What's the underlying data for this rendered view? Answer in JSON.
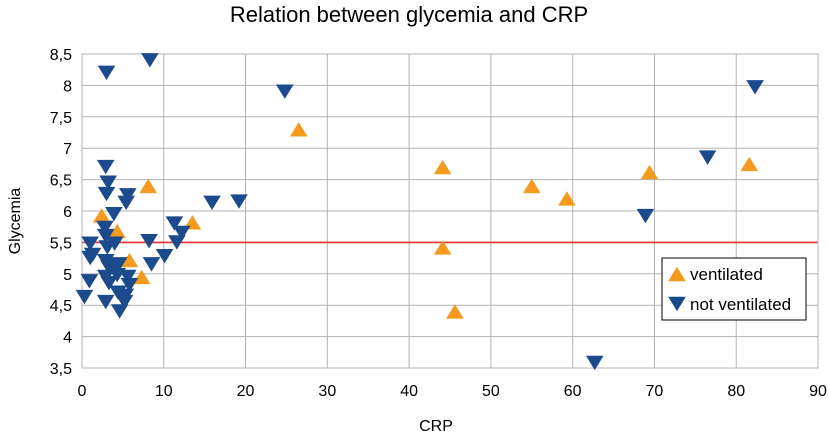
{
  "chart_data": {
    "type": "scatter",
    "title": "Relation between glycemia and CRP",
    "xlabel": "CRP",
    "ylabel": "Glycemia",
    "xlim": [
      0,
      90
    ],
    "ylim": [
      3.5,
      8.5
    ],
    "x_ticks": [
      0,
      10,
      20,
      30,
      40,
      50,
      60,
      70,
      80,
      90
    ],
    "x_tick_labels": [
      "0",
      "10",
      "20",
      "30",
      "40",
      "50",
      "60",
      "70",
      "80",
      "90"
    ],
    "y_ticks": [
      3.5,
      4,
      4.5,
      5,
      5.5,
      6,
      6.5,
      7,
      7.5,
      8,
      8.5
    ],
    "y_tick_labels": [
      "3,5",
      "4",
      "4,5",
      "5",
      "5,5",
      "6",
      "6,5",
      "7",
      "7,5",
      "8",
      "8,5"
    ],
    "grid": true,
    "legend_position": "right",
    "reference_line": {
      "y": 5.5,
      "color": "#e8312f"
    },
    "series": [
      {
        "name": "ventilated",
        "marker": "triangle-up",
        "color": "#f59a1c",
        "points": [
          [
            2.4,
            5.93
          ],
          [
            4.3,
            5.68
          ],
          [
            5.8,
            5.22
          ],
          [
            7.3,
            4.95
          ],
          [
            8.1,
            6.4
          ],
          [
            13.5,
            5.82
          ],
          [
            26.5,
            7.3
          ],
          [
            44.1,
            6.7
          ],
          [
            44.1,
            5.42
          ],
          [
            45.6,
            4.4
          ],
          [
            55.0,
            6.4
          ],
          [
            59.3,
            6.2
          ],
          [
            69.4,
            6.62
          ],
          [
            81.6,
            6.75
          ]
        ]
      },
      {
        "name": "not ventilated",
        "marker": "triangle-down",
        "color": "#1b4b8c",
        "points": [
          [
            3.0,
            8.2
          ],
          [
            8.3,
            8.4
          ],
          [
            24.8,
            7.9
          ],
          [
            82.3,
            7.97
          ],
          [
            76.5,
            6.85
          ],
          [
            68.9,
            5.92
          ],
          [
            62.7,
            3.58
          ],
          [
            0.3,
            4.63
          ],
          [
            0.9,
            4.88
          ],
          [
            1.0,
            5.25
          ],
          [
            1.0,
            5.48
          ],
          [
            1.3,
            5.3
          ],
          [
            2.9,
            6.7
          ],
          [
            3.0,
            6.27
          ],
          [
            3.2,
            6.45
          ],
          [
            2.8,
            5.73
          ],
          [
            2.9,
            5.6
          ],
          [
            3.1,
            5.42
          ],
          [
            2.9,
            5.2
          ],
          [
            3.3,
            5.1
          ],
          [
            2.9,
            4.95
          ],
          [
            3.3,
            4.85
          ],
          [
            2.9,
            4.55
          ],
          [
            3.9,
            5.95
          ],
          [
            4.0,
            5.48
          ],
          [
            4.0,
            5.12
          ],
          [
            4.5,
            5.15
          ],
          [
            4.3,
            4.98
          ],
          [
            4.4,
            4.7
          ],
          [
            4.6,
            4.4
          ],
          [
            5.2,
            4.55
          ],
          [
            5.3,
            4.65
          ],
          [
            5.4,
            6.13
          ],
          [
            5.6,
            6.25
          ],
          [
            5.6,
            4.95
          ],
          [
            5.8,
            4.82
          ],
          [
            8.2,
            5.52
          ],
          [
            8.5,
            5.15
          ],
          [
            10.1,
            5.28
          ],
          [
            11.3,
            5.8
          ],
          [
            11.6,
            5.5
          ],
          [
            12.2,
            5.65
          ],
          [
            15.9,
            6.13
          ],
          [
            19.2,
            6.15
          ]
        ]
      }
    ],
    "legend": [
      "ventilated",
      "not ventilated"
    ]
  }
}
